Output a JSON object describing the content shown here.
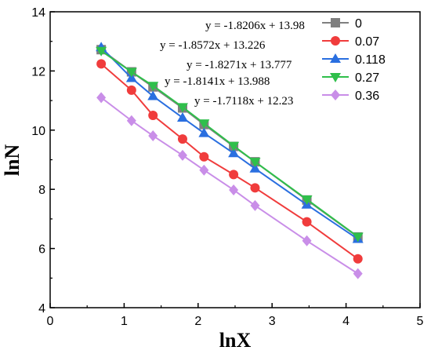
{
  "chart_data": {
    "type": "line",
    "title": "",
    "xlabel": "lnX",
    "ylabel": "lnN",
    "xlim": [
      0,
      5
    ],
    "ylim": [
      4,
      14
    ],
    "xticks": [
      "0",
      "1",
      "2",
      "3",
      "4",
      "5"
    ],
    "yticks": [
      "4",
      "6",
      "8",
      "10",
      "12",
      "14"
    ],
    "grid": false,
    "legend_position": "top-right",
    "x": [
      0.69,
      1.1,
      1.39,
      1.79,
      2.08,
      2.48,
      2.77,
      3.47,
      4.16
    ],
    "series": [
      {
        "name": "0",
        "color": "#7f7f7f",
        "marker": "square",
        "values": [
          12.72,
          11.97,
          11.46,
          10.75,
          10.19,
          9.45,
          8.93,
          7.64,
          6.39
        ]
      },
      {
        "name": "0.07",
        "color": "#f03c3c",
        "marker": "circle",
        "values": [
          12.24,
          11.35,
          10.5,
          9.7,
          9.1,
          8.5,
          8.05,
          6.9,
          5.65
        ]
      },
      {
        "name": "0.118",
        "color": "#2a6fe0",
        "marker": "triangle-up",
        "values": [
          12.8,
          11.76,
          11.15,
          10.42,
          9.9,
          9.22,
          8.7,
          7.48,
          6.32
        ]
      },
      {
        "name": "0.27",
        "color": "#2fbf4b",
        "marker": "triangle-down",
        "values": [
          12.68,
          11.97,
          11.5,
          10.78,
          10.23,
          9.47,
          8.93,
          7.66,
          6.4
        ]
      },
      {
        "name": "0.36",
        "color": "#c98ee8",
        "marker": "diamond",
        "values": [
          11.1,
          10.32,
          9.81,
          9.15,
          8.65,
          7.98,
          7.45,
          6.26,
          5.15
        ]
      }
    ],
    "annotations": [
      "y = -1.8206x + 13.98",
      "y = -1.8572x + 13.226",
      "y = -1.8271x + 13.777",
      "y = -1.8141x + 13.988",
      "y = -1.7118x + 12.23"
    ]
  }
}
